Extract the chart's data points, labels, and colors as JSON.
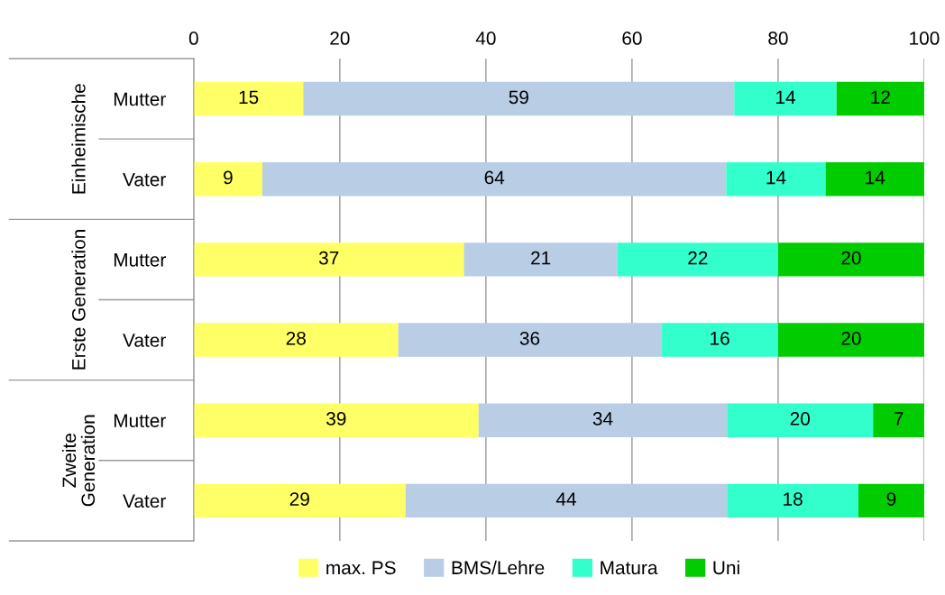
{
  "chart_data": {
    "type": "bar",
    "orientation": "horizontal",
    "stacked": true,
    "categories": [
      "Mutter",
      "Vater",
      "Mutter",
      "Vater",
      "Mutter",
      "Vater"
    ],
    "series": [
      {
        "name": "max. PS",
        "color": "#ffff66",
        "values": [
          15,
          9.4,
          37,
          28,
          39,
          29
        ],
        "value_labels": [
          "15",
          "9",
          "37",
          "28",
          "39",
          "29"
        ]
      },
      {
        "name": "BMS/Lehre",
        "color": "#b9cde5",
        "values": [
          59,
          63.5,
          21,
          36,
          34,
          44
        ],
        "value_labels": [
          "59",
          "64",
          "21",
          "36",
          "34",
          "44"
        ]
      },
      {
        "name": "Matura",
        "color": "#33ffcc",
        "values": [
          14,
          13.6,
          22,
          16,
          20,
          18
        ],
        "value_labels": [
          "14",
          "14",
          "22",
          "16",
          "20",
          "18"
        ]
      },
      {
        "name": "Uni",
        "color": "#00cc00",
        "values": [
          12,
          13.5,
          20,
          20,
          7,
          9
        ],
        "value_labels": [
          "12",
          "14",
          "20",
          "20",
          "7",
          "9"
        ]
      }
    ],
    "annotations": [
      "Einheimische",
      "Erste Generation",
      "Zweite\nGeneration"
    ],
    "xlim": [
      0,
      100
    ],
    "xticks": [
      0,
      20,
      40,
      60,
      80,
      100
    ],
    "grid": "x",
    "legend": "bottom"
  }
}
